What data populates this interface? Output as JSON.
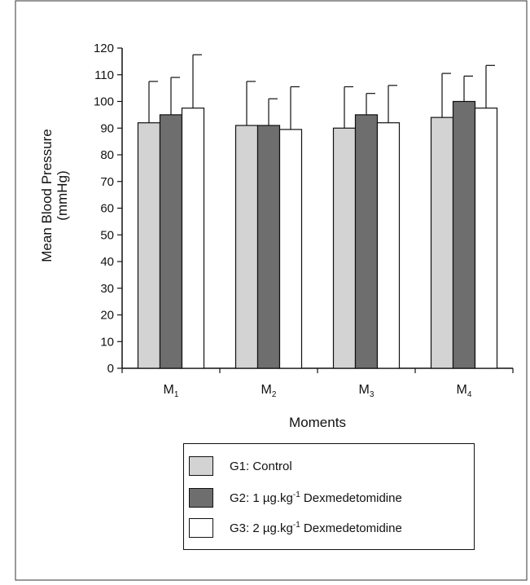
{
  "chart_data": {
    "type": "bar",
    "xlabel": "Moments",
    "ylabel_lines": [
      "Mean Blood Pressure",
      "(mmHg)"
    ],
    "ylim": [
      0,
      120
    ],
    "ytick_step": 10,
    "grid": false,
    "legend_placement": "bottom",
    "categories": [
      {
        "base": "M",
        "sub": "1"
      },
      {
        "base": "M",
        "sub": "2"
      },
      {
        "base": "M",
        "sub": "3"
      },
      {
        "base": "M",
        "sub": "4"
      }
    ],
    "series": [
      {
        "name": "G1: Control",
        "legend_parts": [
          "G1: Control"
        ],
        "color": "#d3d3d3",
        "values": [
          92,
          91,
          90,
          94
        ],
        "errors": [
          15.5,
          16.5,
          15.5,
          16.5
        ]
      },
      {
        "name": "G2: 1 µg.kg-1 Dexmedetomidine",
        "legend_parts": [
          "G2: 1 µg.kg",
          "-1",
          " Dexmedetomidine"
        ],
        "color": "#6e6e6e",
        "values": [
          95,
          91,
          95,
          100
        ],
        "errors": [
          14,
          10,
          8,
          9.5
        ]
      },
      {
        "name": "G3: 2 µg.kg-1 Dexmedetomidine",
        "legend_parts": [
          "G3: 2 µg.kg",
          "-1",
          " Dexmedetomidine"
        ],
        "color": "#ffffff",
        "values": [
          97.5,
          89.5,
          92,
          97.5
        ],
        "errors": [
          20,
          16,
          14,
          16
        ]
      }
    ]
  }
}
